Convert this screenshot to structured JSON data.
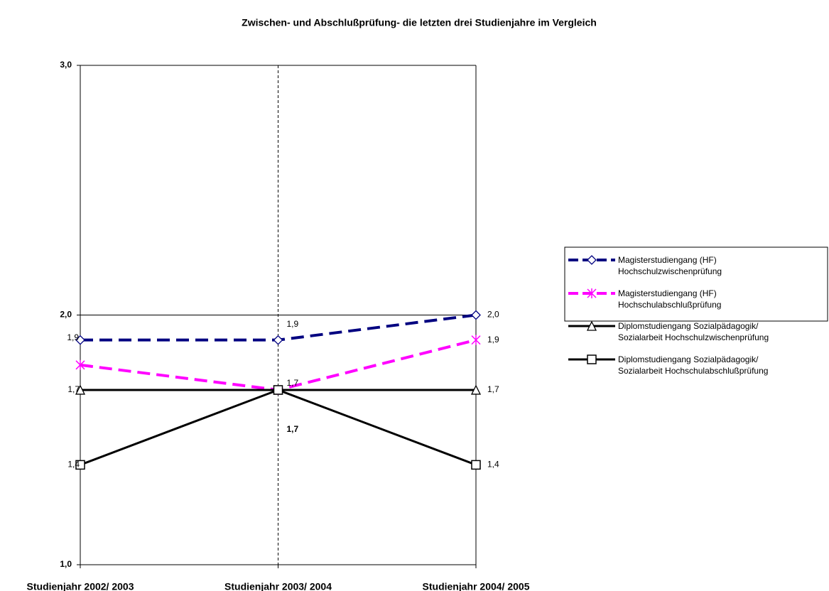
{
  "chart_data": {
    "type": "line",
    "title": "Zwischen- und Abschlußprüfung- die letzten drei Studienjahre im Vergleich",
    "categories": [
      "Studienjahr 2002/ 2003",
      "Studienjahr 2003/ 2004",
      "Studienjahr 2004/ 2005"
    ],
    "ylim": [
      1.0,
      3.0
    ],
    "yticks": [
      {
        "value": 1.0,
        "label": "1,0"
      },
      {
        "value": 2.0,
        "label": "2,0"
      },
      {
        "value": 3.0,
        "label": "3,0"
      }
    ],
    "grid": true,
    "legend": "right",
    "series": [
      {
        "name": "Magisterstudiengang (HF)\nHochschulzwischenprüfung",
        "color": "#000080",
        "dashed": true,
        "marker": "diamond",
        "values": [
          1.9,
          1.9,
          2.0
        ],
        "value_labels": [
          "1,9",
          "1,9",
          "2,0"
        ]
      },
      {
        "name": "Magisterstudiengang (HF)\nHochschulabschlußprüfung",
        "color": "#ff00ff",
        "dashed": true,
        "marker": "asterisk",
        "values": [
          1.8,
          1.7,
          1.9
        ],
        "value_labels": [
          null,
          "1,7",
          "1,9"
        ]
      },
      {
        "name": "Diplomstudiengang Sozialpädagogik/\nSozialarbeit Hochschulzwischenprüfung",
        "color": "#000000",
        "dashed": false,
        "marker": "triangle",
        "values": [
          1.7,
          1.7,
          1.7
        ],
        "value_labels": [
          "1,7",
          null,
          "1,7"
        ]
      },
      {
        "name": "Diplomstudiengang Sozialpädagogik/\nSozialarbeit Hochschulabschlußprüfung",
        "color": "#000000",
        "dashed": false,
        "marker": "square",
        "values": [
          1.4,
          1.7,
          1.4
        ],
        "value_labels": [
          "1,4",
          "1,7",
          "1,4"
        ]
      }
    ]
  }
}
